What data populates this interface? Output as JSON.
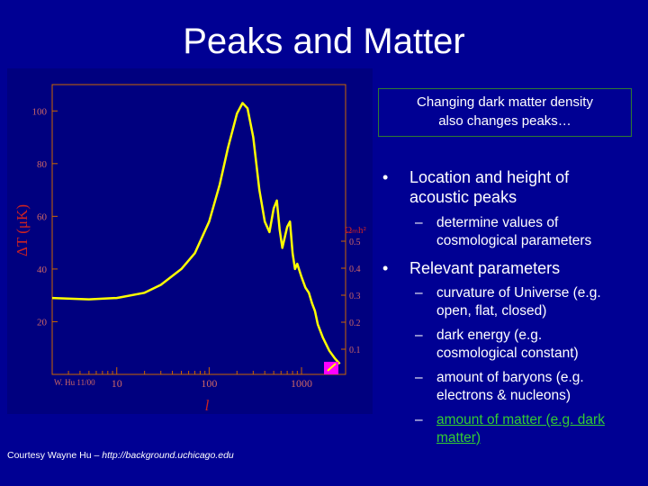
{
  "slide": {
    "title": "Peaks and Matter"
  },
  "callout": {
    "line1": "Changing dark matter density",
    "line2": "also changes peaks…"
  },
  "bullets": [
    {
      "marker": "•",
      "text_line1": "Location and height of",
      "text_line2": "acoustic peaks",
      "subs": [
        {
          "marker": "–",
          "line1": "determine values of",
          "line2": "cosmological parameters"
        }
      ]
    },
    {
      "marker": "•",
      "text_line1": "Relevant parameters",
      "subs": [
        {
          "marker": "–",
          "line1": "curvature of Universe (e.g.",
          "line2": "open, flat, closed)"
        },
        {
          "marker": "–",
          "line1": "dark energy (e.g.",
          "line2": "cosmological constant)"
        },
        {
          "marker": "–",
          "line1": "amount of baryons (e.g.",
          "line2": "electrons & nucleons)"
        },
        {
          "marker": "–",
          "line1": "amount of matter (e.g. dark",
          "line2": "matter)"
        }
      ]
    }
  ],
  "courtesy": {
    "prefix": "Courtesy Wayne Hu – ",
    "url": "http://background.uchicago.edu"
  },
  "figure": {
    "credit": "W. Hu 11/00",
    "ylabel": "ΔT (μK)",
    "xlabel": "l",
    "param_label": "Ωₘh²",
    "y_ticks": [
      "100",
      "80",
      "60",
      "40",
      "20"
    ],
    "x_ticks": [
      "10",
      "100",
      "1000"
    ],
    "param_ticks": [
      "0.5",
      "0.4",
      "0.3",
      "0.2",
      "0.1"
    ],
    "colors": {
      "background": "#000093",
      "plot_bg": "#00007f",
      "curve": "#ffff00",
      "marker": "#ff00ff",
      "accent_green": "#33cc33"
    }
  },
  "chart_data": {
    "type": "line",
    "title": "",
    "xlabel": "l",
    "ylabel": "ΔT (μK)",
    "xscale": "log",
    "xlim": [
      2,
      3000
    ],
    "ylim": [
      0,
      110
    ],
    "x_ticks": [
      10,
      100,
      1000
    ],
    "y_ticks": [
      20,
      40,
      60,
      80,
      100
    ],
    "grid": false,
    "series": [
      {
        "x": [
          2,
          5,
          10,
          20,
          30,
          50,
          70,
          100,
          130,
          160,
          200,
          230,
          260,
          300,
          350,
          400,
          450,
          500,
          540,
          580,
          620,
          700,
          750,
          800,
          850,
          900,
          1000,
          1100,
          1200,
          1300,
          1400,
          1500,
          1700,
          2000,
          2300,
          2600
        ],
        "y": [
          29,
          28.5,
          29,
          31,
          34,
          40,
          46,
          58,
          72,
          86,
          99,
          103,
          101,
          90,
          70,
          58,
          54,
          63,
          66,
          55,
          48,
          56,
          58,
          46,
          40,
          42,
          37,
          33,
          31,
          27,
          24,
          19,
          14,
          9,
          6,
          4
        ]
      }
    ],
    "param_axis": {
      "label": "Ωₘh²",
      "ticks": [
        0.5,
        0.4,
        0.3,
        0.2,
        0.1
      ],
      "current_value": 0.1
    }
  }
}
